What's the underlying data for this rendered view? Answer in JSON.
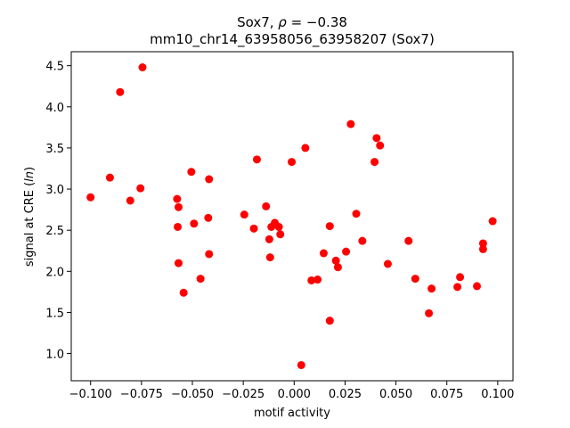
{
  "chart_data": {
    "type": "scatter",
    "title": {
      "prefix": "Sox7, ",
      "rho_symbol": "ρ",
      "rho_value": " = −0.38",
      "subtitle": "mm10_chr14_63958056_63958207 (Sox7)"
    },
    "xlabel": "motif activity",
    "ylabel": {
      "prefix": "signal at CRE (",
      "italic": "ln",
      "suffix": ")"
    },
    "xlim": [
      -0.1095,
      0.1075
    ],
    "ylim": [
      0.67,
      4.67
    ],
    "xticks": [
      {
        "value": -0.1,
        "label": "−0.100"
      },
      {
        "value": -0.075,
        "label": "−0.075"
      },
      {
        "value": -0.05,
        "label": "−0.050"
      },
      {
        "value": -0.025,
        "label": "−0.025"
      },
      {
        "value": 0.0,
        "label": "0.000"
      },
      {
        "value": 0.025,
        "label": "0.025"
      },
      {
        "value": 0.05,
        "label": "0.050"
      },
      {
        "value": 0.075,
        "label": "0.075"
      },
      {
        "value": 0.1,
        "label": "0.100"
      }
    ],
    "yticks": [
      {
        "value": 1.0,
        "label": "1.0"
      },
      {
        "value": 1.5,
        "label": "1.5"
      },
      {
        "value": 2.0,
        "label": "2.0"
      },
      {
        "value": 2.5,
        "label": "2.5"
      },
      {
        "value": 3.0,
        "label": "3.0"
      },
      {
        "value": 3.5,
        "label": "3.5"
      },
      {
        "value": 4.0,
        "label": "4.0"
      },
      {
        "value": 4.5,
        "label": "4.5"
      }
    ],
    "grid": false,
    "marker_color": "#ff0000",
    "points": [
      {
        "x": -0.1,
        "y": 2.9
      },
      {
        "x": -0.0905,
        "y": 3.14
      },
      {
        "x": -0.0855,
        "y": 4.18
      },
      {
        "x": -0.0805,
        "y": 2.86
      },
      {
        "x": -0.0755,
        "y": 3.01
      },
      {
        "x": -0.0745,
        "y": 4.48
      },
      {
        "x": -0.0575,
        "y": 2.88
      },
      {
        "x": -0.0568,
        "y": 2.78
      },
      {
        "x": -0.0572,
        "y": 2.54
      },
      {
        "x": -0.0568,
        "y": 2.1
      },
      {
        "x": -0.0543,
        "y": 1.74
      },
      {
        "x": -0.0505,
        "y": 3.21
      },
      {
        "x": -0.0492,
        "y": 2.58
      },
      {
        "x": -0.046,
        "y": 1.91
      },
      {
        "x": -0.0422,
        "y": 2.65
      },
      {
        "x": -0.0418,
        "y": 3.12
      },
      {
        "x": -0.0418,
        "y": 2.21
      },
      {
        "x": -0.0245,
        "y": 2.69
      },
      {
        "x": -0.0198,
        "y": 2.52
      },
      {
        "x": -0.0183,
        "y": 3.36
      },
      {
        "x": -0.0138,
        "y": 2.79
      },
      {
        "x": -0.0122,
        "y": 2.39
      },
      {
        "x": -0.0118,
        "y": 2.17
      },
      {
        "x": -0.0112,
        "y": 2.54
      },
      {
        "x": -0.0095,
        "y": 2.59
      },
      {
        "x": -0.0075,
        "y": 2.54
      },
      {
        "x": -0.0068,
        "y": 2.45
      },
      {
        "x": -0.0012,
        "y": 3.33
      },
      {
        "x": 0.0035,
        "y": 0.86
      },
      {
        "x": 0.0055,
        "y": 3.5
      },
      {
        "x": 0.0085,
        "y": 1.89
      },
      {
        "x": 0.0115,
        "y": 1.9
      },
      {
        "x": 0.0145,
        "y": 2.22
      },
      {
        "x": 0.0175,
        "y": 1.4
      },
      {
        "x": 0.0175,
        "y": 2.55
      },
      {
        "x": 0.0205,
        "y": 2.13
      },
      {
        "x": 0.0215,
        "y": 2.05
      },
      {
        "x": 0.0255,
        "y": 2.24
      },
      {
        "x": 0.0278,
        "y": 3.79
      },
      {
        "x": 0.0305,
        "y": 2.7
      },
      {
        "x": 0.0335,
        "y": 2.37
      },
      {
        "x": 0.0395,
        "y": 3.33
      },
      {
        "x": 0.0405,
        "y": 3.62
      },
      {
        "x": 0.0422,
        "y": 3.53
      },
      {
        "x": 0.046,
        "y": 2.09
      },
      {
        "x": 0.0562,
        "y": 2.37
      },
      {
        "x": 0.0595,
        "y": 1.91
      },
      {
        "x": 0.0662,
        "y": 1.49
      },
      {
        "x": 0.0675,
        "y": 1.79
      },
      {
        "x": 0.0802,
        "y": 1.81
      },
      {
        "x": 0.0815,
        "y": 1.93
      },
      {
        "x": 0.0898,
        "y": 1.82
      },
      {
        "x": 0.0928,
        "y": 2.34
      },
      {
        "x": 0.0928,
        "y": 2.27
      },
      {
        "x": 0.0975,
        "y": 2.61
      }
    ]
  }
}
